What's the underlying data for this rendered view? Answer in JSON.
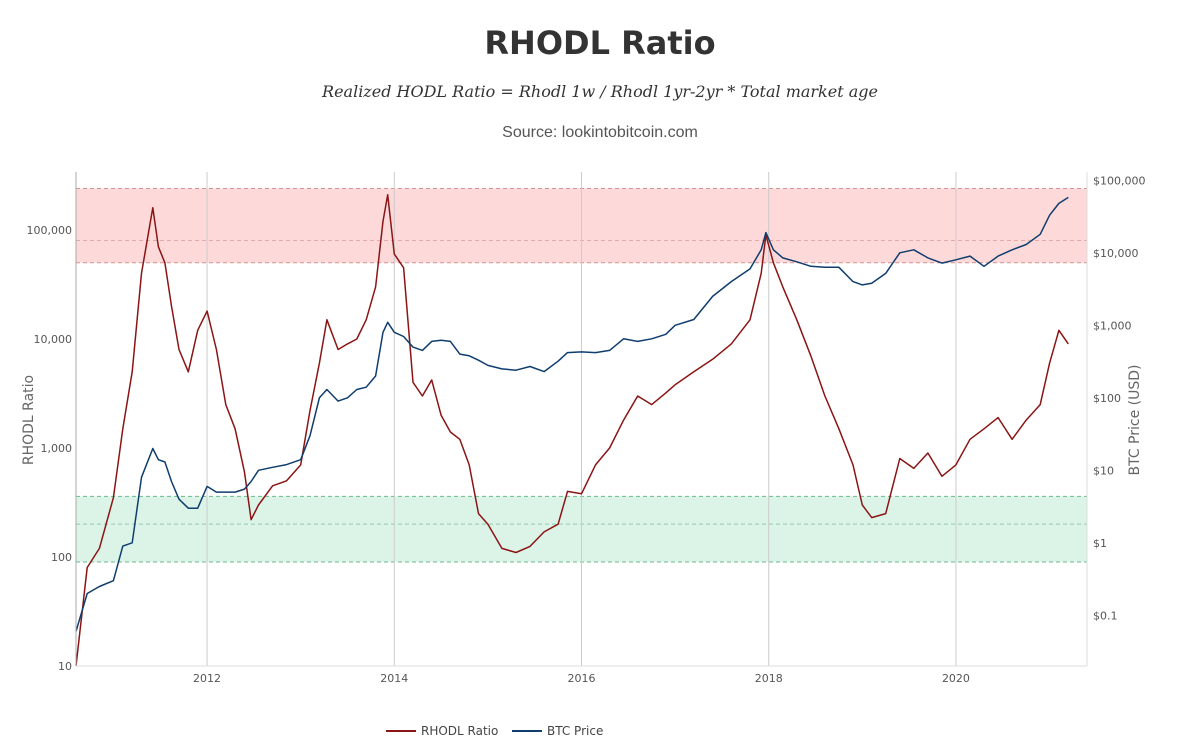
{
  "chart_data": {
    "type": "line",
    "title": "RHODL Ratio",
    "subtitle": "Realized HODL Ratio = Rhodl 1w / Rhodl 1yr-2yr * Total market age",
    "source": "Source: lookintobitcoin.com",
    "ylabel_left": "RHODL Ratio",
    "ylabel_right": "BTC Price (USD)",
    "scale": "log",
    "grid": "vertical lines at year ticks",
    "legend_position": "bottom-center",
    "x_range": [
      2010.6,
      2021.4
    ],
    "x_ticks": [
      "2012",
      "2014",
      "2016",
      "2018",
      "2020"
    ],
    "y_left_range": [
      10,
      340000
    ],
    "y_left_ticks": [
      "10",
      "100",
      "1,000",
      "10,000",
      "100,000"
    ],
    "y_right_range": [
      0.02,
      130000
    ],
    "y_right_ticks": [
      "$0.1",
      "$1",
      "$10",
      "$100",
      "$1,000",
      "$10,000",
      "$100,000"
    ],
    "bands": [
      {
        "name": "top band",
        "from": 50000,
        "to": 240000,
        "mid": 80000,
        "color": "#fdd9d9"
      },
      {
        "name": "bottom band",
        "from": 90,
        "to": 360,
        "mid": 200,
        "color": "#dcf4e8"
      }
    ],
    "series": [
      {
        "name": "RHODL Ratio",
        "axis": "left",
        "color": "#8b1414",
        "x": [
          2010.6,
          2010.72,
          2010.85,
          2011.0,
          2011.1,
          2011.2,
          2011.3,
          2011.42,
          2011.48,
          2011.55,
          2011.62,
          2011.7,
          2011.8,
          2011.9,
          2012.0,
          2012.1,
          2012.2,
          2012.3,
          2012.4,
          2012.47,
          2012.55,
          2012.7,
          2012.85,
          2013.0,
          2013.1,
          2013.2,
          2013.28,
          2013.4,
          2013.5,
          2013.6,
          2013.7,
          2013.8,
          2013.88,
          2013.93,
          2014.0,
          2014.1,
          2014.2,
          2014.3,
          2014.4,
          2014.5,
          2014.6,
          2014.7,
          2014.8,
          2014.9,
          2015.0,
          2015.15,
          2015.3,
          2015.45,
          2015.6,
          2015.75,
          2015.85,
          2016.0,
          2016.15,
          2016.3,
          2016.45,
          2016.6,
          2016.75,
          2016.9,
          2017.0,
          2017.2,
          2017.4,
          2017.6,
          2017.8,
          2017.92,
          2017.97,
          2018.05,
          2018.15,
          2018.3,
          2018.45,
          2018.6,
          2018.75,
          2018.9,
          2019.0,
          2019.1,
          2019.25,
          2019.4,
          2019.55,
          2019.7,
          2019.85,
          2020.0,
          2020.15,
          2020.3,
          2020.45,
          2020.6,
          2020.75,
          2020.9,
          2021.0,
          2021.1,
          2021.2
        ],
        "values": [
          10,
          80,
          120,
          350,
          1500,
          5000,
          40000,
          160000,
          70000,
          50000,
          20000,
          8000,
          5000,
          12000,
          18000,
          8000,
          2500,
          1500,
          600,
          220,
          300,
          450,
          500,
          700,
          2200,
          6000,
          15000,
          8000,
          9000,
          10000,
          15000,
          30000,
          120000,
          210000,
          60000,
          45000,
          4000,
          3000,
          4200,
          2000,
          1400,
          1200,
          700,
          250,
          200,
          120,
          110,
          125,
          170,
          200,
          400,
          380,
          700,
          1000,
          1800,
          3000,
          2500,
          3200,
          3800,
          5000,
          6500,
          9000,
          15000,
          40000,
          90000,
          50000,
          30000,
          15000,
          7000,
          3000,
          1500,
          700,
          300,
          230,
          250,
          800,
          650,
          900,
          550,
          700,
          1200,
          1500,
          1900,
          1200,
          1800,
          2500,
          6000,
          12000,
          9000
        ]
      },
      {
        "name": "BTC Price",
        "axis": "right",
        "color": "#0f3d6e",
        "x": [
          2010.6,
          2010.72,
          2010.85,
          2011.0,
          2011.1,
          2011.2,
          2011.3,
          2011.42,
          2011.48,
          2011.55,
          2011.62,
          2011.7,
          2011.8,
          2011.9,
          2012.0,
          2012.1,
          2012.2,
          2012.3,
          2012.4,
          2012.47,
          2012.55,
          2012.7,
          2012.85,
          2013.0,
          2013.1,
          2013.2,
          2013.28,
          2013.4,
          2013.5,
          2013.6,
          2013.7,
          2013.8,
          2013.88,
          2013.93,
          2014.0,
          2014.1,
          2014.2,
          2014.3,
          2014.4,
          2014.5,
          2014.6,
          2014.7,
          2014.8,
          2014.9,
          2015.0,
          2015.15,
          2015.3,
          2015.45,
          2015.6,
          2015.75,
          2015.85,
          2016.0,
          2016.15,
          2016.3,
          2016.45,
          2016.6,
          2016.75,
          2016.9,
          2017.0,
          2017.2,
          2017.4,
          2017.6,
          2017.8,
          2017.92,
          2017.97,
          2018.05,
          2018.15,
          2018.3,
          2018.45,
          2018.6,
          2018.75,
          2018.9,
          2019.0,
          2019.1,
          2019.25,
          2019.4,
          2019.55,
          2019.7,
          2019.85,
          2020.0,
          2020.15,
          2020.3,
          2020.45,
          2020.6,
          2020.75,
          2020.9,
          2021.0,
          2021.1,
          2021.2
        ],
        "values": [
          0.06,
          0.2,
          0.25,
          0.3,
          0.9,
          1.0,
          8,
          20,
          14,
          13,
          7,
          4,
          3,
          3,
          6,
          5,
          5,
          5,
          5.5,
          7,
          10,
          11,
          12,
          14,
          30,
          100,
          130,
          90,
          100,
          130,
          140,
          200,
          800,
          1100,
          800,
          700,
          500,
          450,
          600,
          620,
          600,
          400,
          380,
          330,
          280,
          250,
          240,
          270,
          230,
          320,
          420,
          430,
          420,
          450,
          650,
          600,
          650,
          750,
          1000,
          1200,
          2500,
          4000,
          6000,
          11000,
          19000,
          11000,
          8500,
          7500,
          6500,
          6300,
          6300,
          4000,
          3600,
          3800,
          5200,
          10000,
          11000,
          8500,
          7200,
          8000,
          9000,
          6500,
          9000,
          11000,
          13000,
          18000,
          33000,
          48000,
          58000
        ]
      }
    ]
  },
  "legend": {
    "rhodl_label": "RHODL Ratio",
    "btc_label": "BTC Price"
  }
}
